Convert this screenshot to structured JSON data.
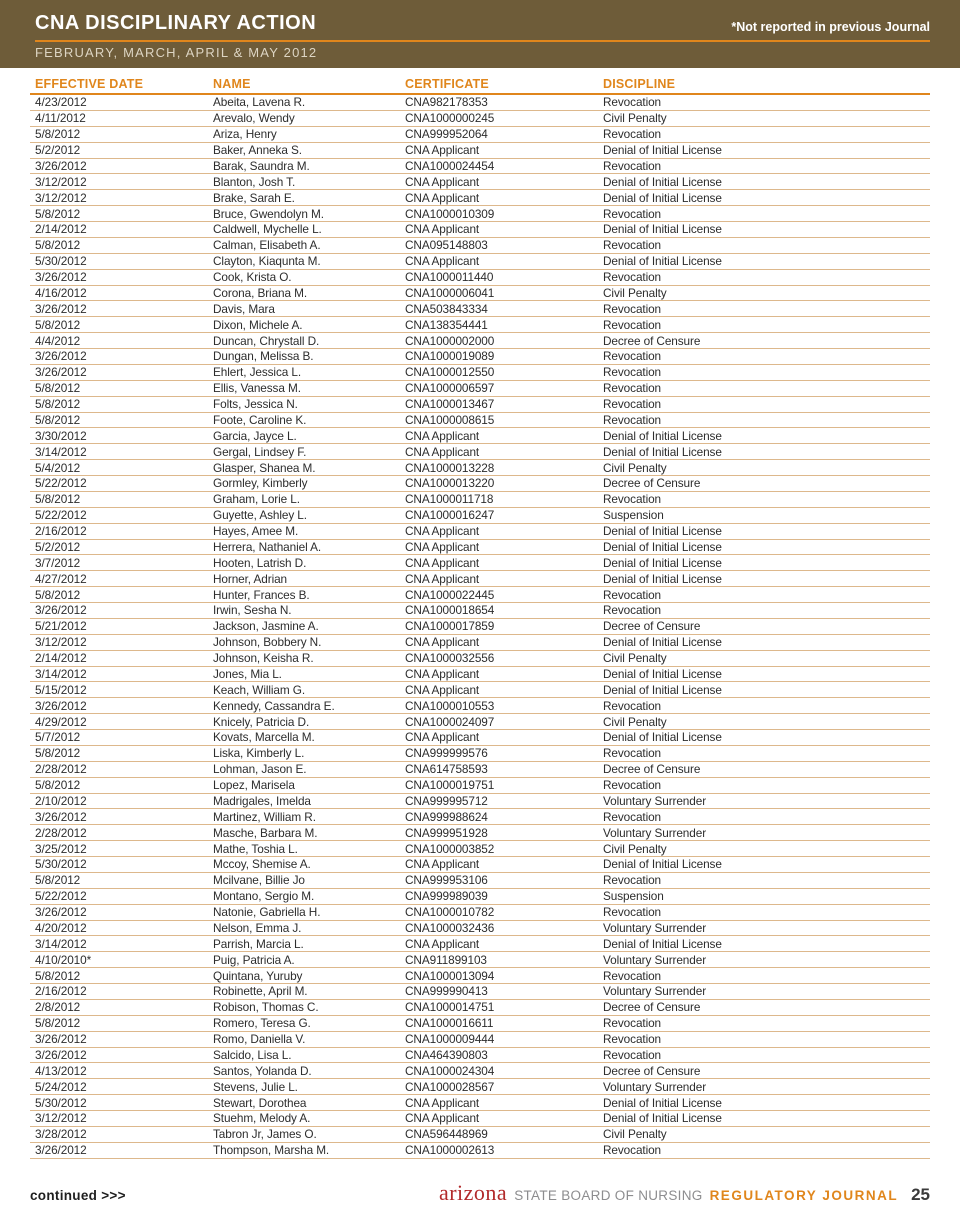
{
  "header": {
    "title": "CNA DISCIPLINARY ACTION",
    "subtitle": "FEBRUARY, MARCH, APRIL & MAY 2012",
    "note": "*Not reported in previous Journal"
  },
  "table": {
    "columns": [
      "EFFECTIVE DATE",
      "NAME",
      "CERTIFICATE",
      "DISCIPLINE"
    ],
    "rows": [
      [
        "4/23/2012",
        "Abeita, Lavena R.",
        "CNA982178353",
        "Revocation"
      ],
      [
        "4/11/2012",
        "Arevalo, Wendy",
        "CNA1000000245",
        "Civil Penalty"
      ],
      [
        "5/8/2012",
        "Ariza, Henry",
        "CNA999952064",
        "Revocation"
      ],
      [
        "5/2/2012",
        "Baker, Anneka S.",
        "CNA Applicant",
        "Denial of Initial License"
      ],
      [
        "3/26/2012",
        "Barak, Saundra M.",
        "CNA1000024454",
        "Revocation"
      ],
      [
        "3/12/2012",
        "Blanton, Josh T.",
        "CNA Applicant",
        "Denial of Initial License"
      ],
      [
        "3/12/2012",
        "Brake, Sarah E.",
        "CNA Applicant",
        "Denial of Initial License"
      ],
      [
        "5/8/2012",
        "Bruce, Gwendolyn M.",
        "CNA1000010309",
        "Revocation"
      ],
      [
        "2/14/2012",
        "Caldwell, Mychelle L.",
        "CNA Applicant",
        "Denial of Initial License"
      ],
      [
        "5/8/2012",
        "Calman, Elisabeth A.",
        "CNA095148803",
        "Revocation"
      ],
      [
        "5/30/2012",
        "Clayton, Kiaqunta M.",
        "CNA Applicant",
        "Denial of Initial License"
      ],
      [
        "3/26/2012",
        "Cook, Krista O.",
        "CNA1000011440",
        "Revocation"
      ],
      [
        "4/16/2012",
        "Corona, Briana M.",
        "CNA1000006041",
        "Civil Penalty"
      ],
      [
        "3/26/2012",
        "Davis, Mara",
        "CNA503843334",
        "Revocation"
      ],
      [
        "5/8/2012",
        "Dixon, Michele A.",
        "CNA138354441",
        "Revocation"
      ],
      [
        "4/4/2012",
        "Duncan, Chrystall D.",
        "CNA1000002000",
        "Decree of Censure"
      ],
      [
        "3/26/2012",
        "Dungan, Melissa B.",
        "CNA1000019089",
        "Revocation"
      ],
      [
        "3/26/2012",
        "Ehlert, Jessica L.",
        "CNA1000012550",
        "Revocation"
      ],
      [
        "5/8/2012",
        "Ellis, Vanessa M.",
        "CNA1000006597",
        "Revocation"
      ],
      [
        "5/8/2012",
        "Folts, Jessica N.",
        "CNA1000013467",
        "Revocation"
      ],
      [
        "5/8/2012",
        "Foote, Caroline K.",
        "CNA1000008615",
        "Revocation"
      ],
      [
        "3/30/2012",
        "Garcia, Jayce L.",
        "CNA Applicant",
        "Denial of Initial License"
      ],
      [
        "3/14/2012",
        "Gergal, Lindsey F.",
        "CNA Applicant",
        "Denial of Initial License"
      ],
      [
        "5/4/2012",
        "Glasper, Shanea M.",
        "CNA1000013228",
        "Civil Penalty"
      ],
      [
        "5/22/2012",
        "Gormley, Kimberly",
        "CNA1000013220",
        "Decree of Censure"
      ],
      [
        "5/8/2012",
        "Graham, Lorie L.",
        "CNA1000011718",
        "Revocation"
      ],
      [
        "5/22/2012",
        "Guyette, Ashley L.",
        "CNA1000016247",
        "Suspension"
      ],
      [
        "2/16/2012",
        "Hayes, Amee M.",
        "CNA Applicant",
        "Denial of Initial License"
      ],
      [
        "5/2/2012",
        "Herrera, Nathaniel A.",
        "CNA Applicant",
        "Denial of Initial License"
      ],
      [
        "3/7/2012",
        "Hooten, Latrish D.",
        "CNA Applicant",
        "Denial of Initial License"
      ],
      [
        "4/27/2012",
        "Horner, Adrian",
        "CNA Applicant",
        "Denial of Initial License"
      ],
      [
        "5/8/2012",
        "Hunter, Frances B.",
        "CNA1000022445",
        "Revocation"
      ],
      [
        "3/26/2012",
        "Irwin, Sesha N.",
        "CNA1000018654",
        "Revocation"
      ],
      [
        "5/21/2012",
        "Jackson, Jasmine A.",
        "CNA1000017859",
        "Decree of Censure"
      ],
      [
        "3/12/2012",
        "Johnson, Bobbery N.",
        "CNA Applicant",
        "Denial of Initial License"
      ],
      [
        "2/14/2012",
        "Johnson, Keisha R.",
        "CNA1000032556",
        "Civil Penalty"
      ],
      [
        "3/14/2012",
        "Jones, Mia L.",
        "CNA Applicant",
        "Denial of Initial License"
      ],
      [
        "5/15/2012",
        "Keach, William G.",
        "CNA Applicant",
        "Denial of Initial License"
      ],
      [
        "3/26/2012",
        "Kennedy, Cassandra E.",
        "CNA1000010553",
        "Revocation"
      ],
      [
        "4/29/2012",
        "Knicely, Patricia D.",
        "CNA1000024097",
        "Civil Penalty"
      ],
      [
        "5/7/2012",
        "Kovats, Marcella M.",
        "CNA Applicant",
        "Denial of Initial License"
      ],
      [
        "5/8/2012",
        "Liska, Kimberly L.",
        "CNA999999576",
        "Revocation"
      ],
      [
        "2/28/2012",
        "Lohman, Jason E.",
        "CNA614758593",
        "Decree of Censure"
      ],
      [
        "5/8/2012",
        "Lopez, Marisela",
        "CNA1000019751",
        "Revocation"
      ],
      [
        "2/10/2012",
        "Madrigales, Imelda",
        "CNA999995712",
        "Voluntary Surrender"
      ],
      [
        "3/26/2012",
        "Martinez, William R.",
        "CNA999988624",
        "Revocation"
      ],
      [
        "2/28/2012",
        "Masche, Barbara M.",
        "CNA999951928",
        "Voluntary Surrender"
      ],
      [
        "3/25/2012",
        "Mathe, Toshia L.",
        "CNA1000003852",
        "Civil Penalty"
      ],
      [
        "5/30/2012",
        "Mccoy, Shemise A.",
        "CNA Applicant",
        "Denial of Initial License"
      ],
      [
        "5/8/2012",
        "Mcilvane, Billie Jo",
        "CNA999953106",
        "Revocation"
      ],
      [
        "5/22/2012",
        "Montano, Sergio M.",
        "CNA999989039",
        "Suspension"
      ],
      [
        "3/26/2012",
        "Natonie, Gabriella H.",
        "CNA1000010782",
        "Revocation"
      ],
      [
        "4/20/2012",
        "Nelson, Emma J.",
        "CNA1000032436",
        "Voluntary Surrender"
      ],
      [
        "3/14/2012",
        "Parrish, Marcia L.",
        "CNA Applicant",
        "Denial of Initial License"
      ],
      [
        "4/10/2010*",
        "Puig, Patricia A.",
        "CNA911899103",
        "Voluntary Surrender"
      ],
      [
        "5/8/2012",
        "Quintana, Yuruby",
        "CNA1000013094",
        "Revocation"
      ],
      [
        "2/16/2012",
        "Robinette, April M.",
        "CNA999990413",
        "Voluntary Surrender"
      ],
      [
        "2/8/2012",
        "Robison, Thomas C.",
        "CNA1000014751",
        "Decree of Censure"
      ],
      [
        "5/8/2012",
        "Romero, Teresa G.",
        "CNA1000016611",
        "Revocation"
      ],
      [
        "3/26/2012",
        "Romo, Daniella V.",
        "CNA1000009444",
        "Revocation"
      ],
      [
        "3/26/2012",
        "Salcido, Lisa L.",
        "CNA464390803",
        "Revocation"
      ],
      [
        "4/13/2012",
        "Santos, Yolanda D.",
        "CNA1000024304",
        "Decree of Censure"
      ],
      [
        "5/24/2012",
        "Stevens, Julie L.",
        "CNA1000028567",
        "Voluntary Surrender"
      ],
      [
        "5/30/2012",
        "Stewart, Dorothea",
        "CNA Applicant",
        "Denial of Initial License"
      ],
      [
        "3/12/2012",
        "Stuehm, Melody A.",
        "CNA Applicant",
        "Denial of Initial License"
      ],
      [
        "3/28/2012",
        "Tabron Jr, James O.",
        "CNA596448969",
        "Civil Penalty"
      ],
      [
        "3/26/2012",
        "Thompson, Marsha M.",
        "CNA1000002613",
        "Revocation"
      ]
    ]
  },
  "footer": {
    "continued": "continued >>>",
    "brand_arizona": "arizona",
    "brand_board": "STATE BOARD OF NURSING",
    "brand_journal": "REGULATORY JOURNAL",
    "page_number": "25"
  },
  "colors": {
    "band_brown": "#6e5c39",
    "accent_orange": "#e0861c",
    "row_line": "#ddb88c",
    "brand_red": "#b22a2b",
    "brand_gray": "#8d8d8f"
  }
}
